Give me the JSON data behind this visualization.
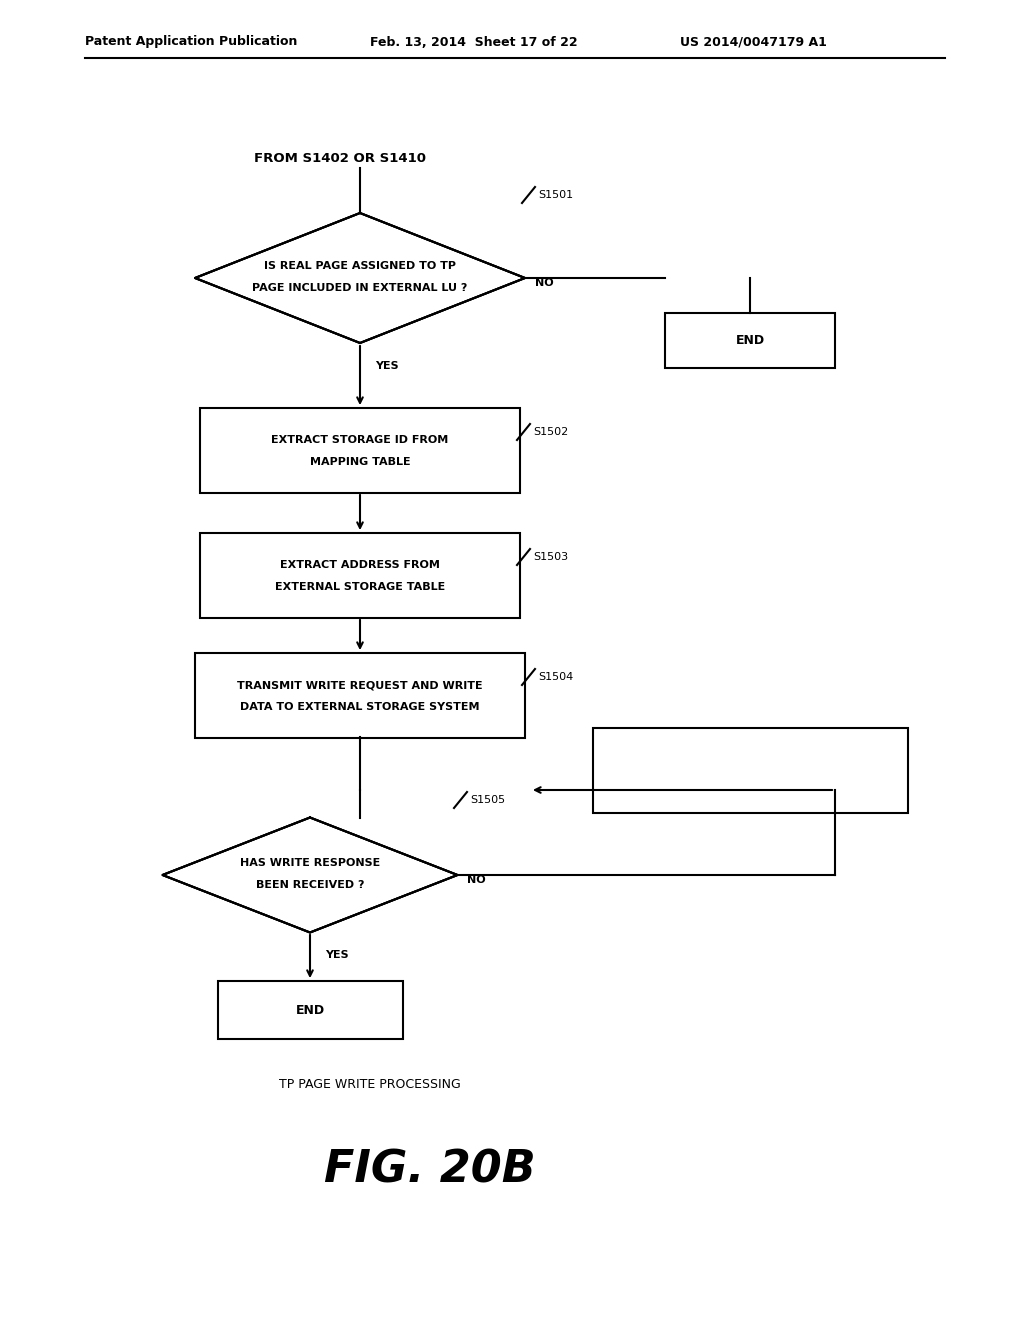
{
  "bg_color": "#ffffff",
  "header_left": "Patent Application Publication",
  "header_mid": "Feb. 13, 2014  Sheet 17 of 22",
  "header_right": "US 2014/0047179 A1",
  "start_label": "FROM S1402 OR S1410",
  "diamond1_line1": "IS REAL PAGE ASSIGNED TO TP",
  "diamond1_line2": "PAGE INCLUDED IN EXTERNAL LU ?",
  "diamond1_step": "S1501",
  "end1_label": "END",
  "yes1_label": "YES",
  "no1_label": "NO",
  "box1_line1": "EXTRACT STORAGE ID FROM",
  "box1_line2": "MAPPING TABLE",
  "box1_step": "S1502",
  "box2_line1": "EXTRACT ADDRESS FROM",
  "box2_line2": "EXTERNAL STORAGE TABLE",
  "box2_step": "S1503",
  "box3_line1": "TRANSMIT WRITE REQUEST AND WRITE",
  "box3_line2": "DATA TO EXTERNAL STORAGE SYSTEM",
  "box3_step": "S1504",
  "diamond2_line1": "HAS WRITE RESPONSE",
  "diamond2_line2": "BEEN RECEIVED ?",
  "diamond2_step": "S1505",
  "no2_label": "NO",
  "yes2_label": "YES",
  "end2_label": "END",
  "caption": "TP PAGE WRITE PROCESSING",
  "fig_label": "FIG. 20B",
  "line_color": "#000000",
  "text_color": "#000000",
  "lw": 1.5,
  "header_fontsize": 9,
  "label_fontsize": 8,
  "fig_fontsize": 32
}
